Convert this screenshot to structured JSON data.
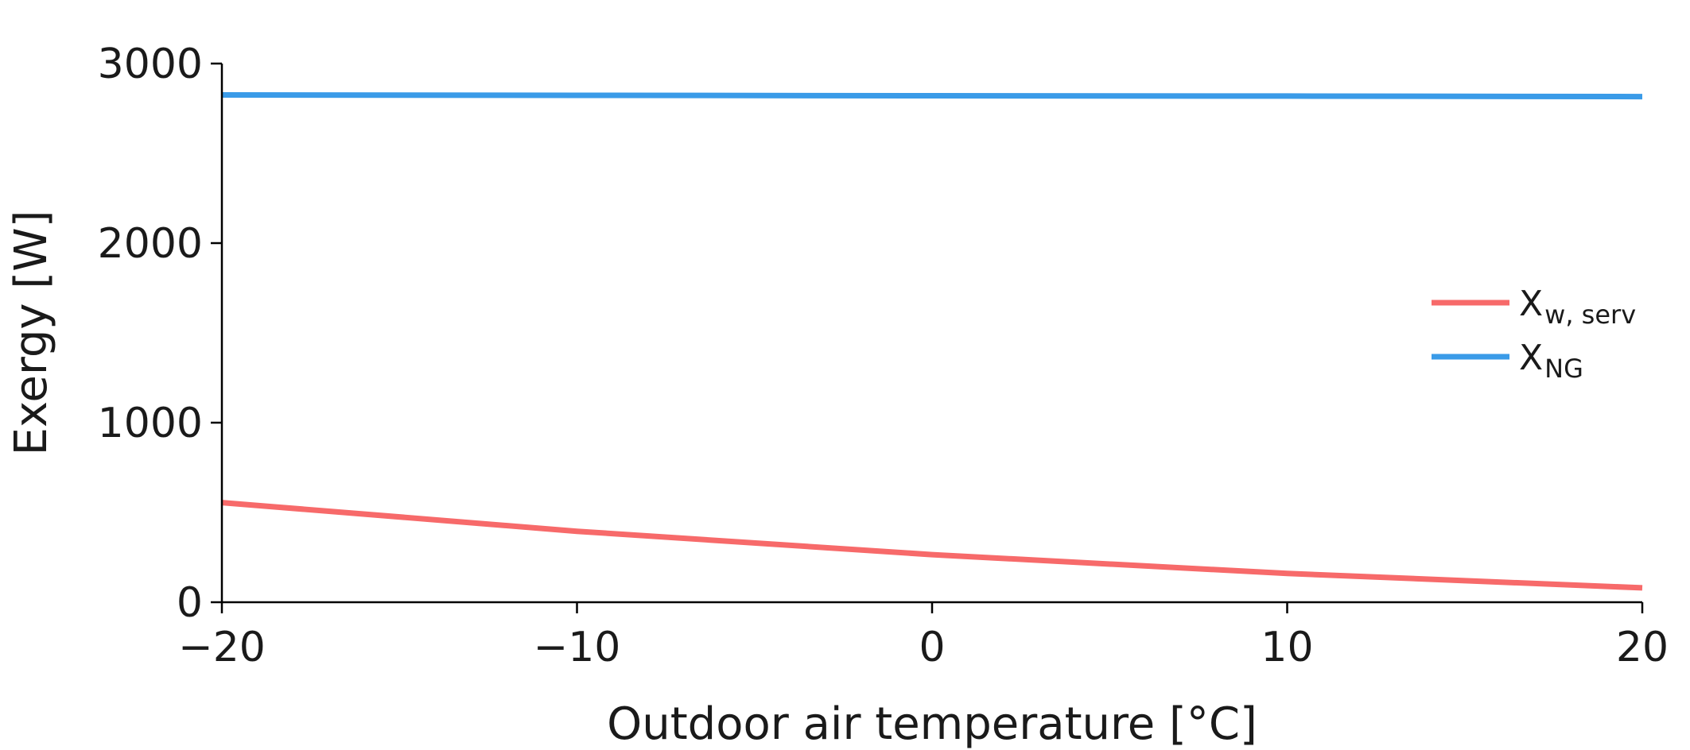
{
  "chart_data": {
    "type": "line",
    "xlabel": "Outdoor air temperature [°C]",
    "ylabel": "Exergy [W]",
    "xlim": [
      -20,
      20
    ],
    "ylim": [
      0,
      3000
    ],
    "xticks": [
      -20,
      -10,
      0,
      10,
      20
    ],
    "xtick_labels": [
      "−20",
      "−10",
      "0",
      "10",
      "20"
    ],
    "yticks": [
      0,
      1000,
      2000,
      3000
    ],
    "ytick_labels": [
      "0",
      "1000",
      "2000",
      "3000"
    ],
    "grid": false,
    "legend_position": "right",
    "series": [
      {
        "name": "X",
        "subscript": "w, serv",
        "color": "#f76a6a",
        "x": [
          -20,
          -10,
          0,
          10,
          20
        ],
        "y": [
          555,
          395,
          265,
          160,
          80
        ]
      },
      {
        "name": "X",
        "subscript": "NG",
        "color": "#3a9be8",
        "x": [
          -20,
          -10,
          0,
          10,
          20
        ],
        "y": [
          2825,
          2823,
          2821,
          2819,
          2816
        ]
      }
    ]
  }
}
